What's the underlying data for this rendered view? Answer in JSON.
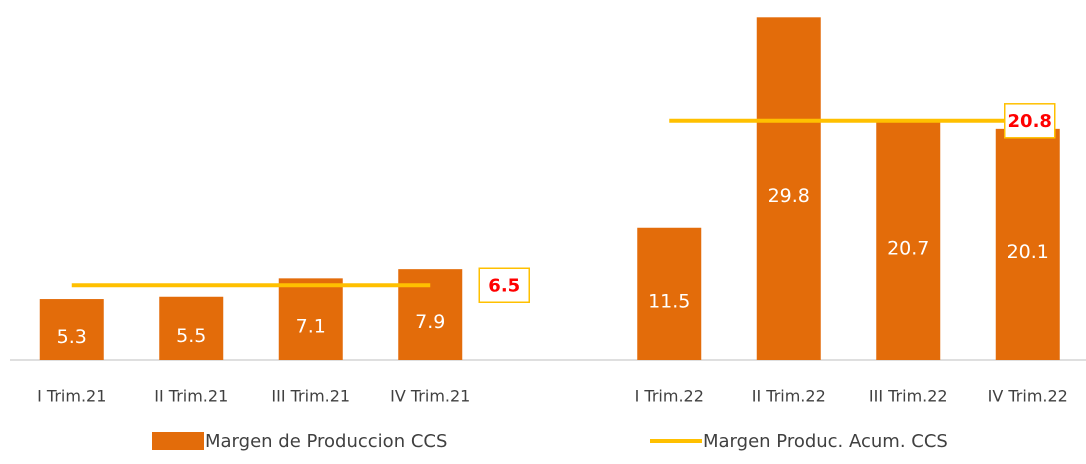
{
  "chart_data": {
    "type": "bar",
    "categories": [
      "I Trim.21",
      "II Trim.21",
      "III Trim.21",
      "IV Trim.21",
      null,
      "I Trim.22",
      "II Trim.22",
      "III Trim.22",
      "IV Trim.22"
    ],
    "series": [
      {
        "name": "Margen de Produccion CCS",
        "color": "#e36c0a",
        "type": "bar",
        "values": [
          5.3,
          5.5,
          7.1,
          7.9,
          null,
          11.5,
          29.8,
          20.7,
          20.1
        ]
      },
      {
        "name": "Margen Produc. Acum. CCS",
        "color": "#ffc000",
        "type": "line",
        "values": [
          6.5,
          6.5,
          6.5,
          6.5,
          null,
          20.8,
          20.8,
          20.8,
          20.8
        ]
      }
    ],
    "ylim": [
      0,
      30
    ]
  }
}
